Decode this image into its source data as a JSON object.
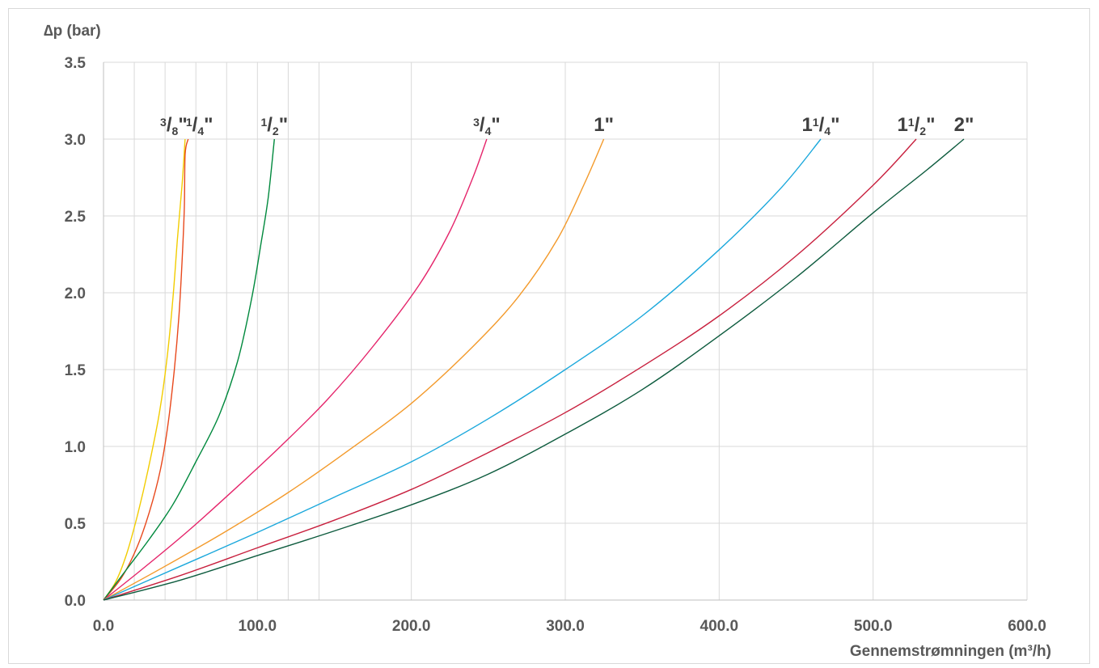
{
  "chart_data": {
    "type": "line",
    "title": "",
    "ylabel": "∆p (bar)",
    "xlabel": "Gennemstrømningen (m³/h)",
    "xlim": [
      0,
      600
    ],
    "ylim": [
      0,
      3.5
    ],
    "x_ticks": [
      0,
      100,
      200,
      300,
      400,
      500,
      600
    ],
    "x_tick_labels": [
      "0.0",
      "100.0",
      "200.0",
      "300.0",
      "400.0",
      "500.0",
      "600.0"
    ],
    "y_ticks": [
      0,
      0.5,
      1.0,
      1.5,
      2.0,
      2.5,
      3.0,
      3.5
    ],
    "y_tick_labels": [
      "0.0",
      "0.5",
      "1.0",
      "1.5",
      "2.0",
      "2.5",
      "3.0",
      "3.5"
    ],
    "vertical_gridlines": [
      20,
      40,
      60,
      80,
      100,
      120,
      140,
      200,
      300,
      400,
      500,
      600
    ],
    "grid": true,
    "series": [
      {
        "label": {
          "whole": "",
          "num": "3",
          "den": "8",
          "suffix": "\""
        },
        "color": "#f2cc00",
        "points": [
          [
            0,
            0
          ],
          [
            8,
            0.12
          ],
          [
            15,
            0.3
          ],
          [
            22,
            0.55
          ],
          [
            29,
            0.85
          ],
          [
            36,
            1.2
          ],
          [
            41,
            1.55
          ],
          [
            45,
            1.95
          ],
          [
            48,
            2.35
          ],
          [
            51,
            2.7
          ],
          [
            53,
            3.0
          ]
        ]
      },
      {
        "label": {
          "whole": "",
          "num": "1",
          "den": "4",
          "suffix": "\""
        },
        "color": "#e8491d",
        "points": [
          [
            0,
            0
          ],
          [
            12,
            0.15
          ],
          [
            22,
            0.35
          ],
          [
            30,
            0.58
          ],
          [
            37,
            0.85
          ],
          [
            42,
            1.15
          ],
          [
            46,
            1.5
          ],
          [
            49,
            1.85
          ],
          [
            51,
            2.2
          ],
          [
            52.5,
            2.55
          ],
          [
            53,
            2.9
          ],
          [
            55,
            3.0
          ]
        ]
      },
      {
        "label": {
          "whole": "",
          "num": "1",
          "den": "2",
          "suffix": "\""
        },
        "color": "#00893d",
        "points": [
          [
            0,
            0
          ],
          [
            15,
            0.2
          ],
          [
            30,
            0.4
          ],
          [
            45,
            0.62
          ],
          [
            60,
            0.9
          ],
          [
            75,
            1.2
          ],
          [
            87,
            1.55
          ],
          [
            96,
            1.95
          ],
          [
            102,
            2.3
          ],
          [
            107,
            2.62
          ],
          [
            111,
            3.0
          ]
        ]
      },
      {
        "label": {
          "whole": "",
          "num": "3",
          "den": "4",
          "suffix": "\""
        },
        "color": "#e5256b",
        "points": [
          [
            0,
            0
          ],
          [
            25,
            0.2
          ],
          [
            55,
            0.45
          ],
          [
            85,
            0.72
          ],
          [
            115,
            1.0
          ],
          [
            145,
            1.3
          ],
          [
            175,
            1.65
          ],
          [
            205,
            2.05
          ],
          [
            225,
            2.4
          ],
          [
            240,
            2.75
          ],
          [
            249,
            3.0
          ]
        ]
      },
      {
        "label": {
          "whole": "1",
          "num": "",
          "den": "",
          "suffix": "\""
        },
        "color": "#f39a2b",
        "points": [
          [
            0,
            0
          ],
          [
            40,
            0.22
          ],
          [
            80,
            0.45
          ],
          [
            120,
            0.7
          ],
          [
            160,
            0.98
          ],
          [
            200,
            1.28
          ],
          [
            240,
            1.65
          ],
          [
            270,
            1.98
          ],
          [
            295,
            2.35
          ],
          [
            312,
            2.7
          ],
          [
            325,
            3.0
          ]
        ]
      },
      {
        "label": {
          "whole": "1",
          "num": "1",
          "den": "4",
          "suffix": "\""
        },
        "color": "#1ba8dc",
        "points": [
          [
            0,
            0
          ],
          [
            50,
            0.22
          ],
          [
            100,
            0.44
          ],
          [
            150,
            0.67
          ],
          [
            200,
            0.9
          ],
          [
            250,
            1.18
          ],
          [
            300,
            1.5
          ],
          [
            350,
            1.85
          ],
          [
            400,
            2.28
          ],
          [
            440,
            2.68
          ],
          [
            466,
            3.0
          ]
        ]
      },
      {
        "label": {
          "whole": "1",
          "num": "1",
          "den": "2",
          "suffix": "\""
        },
        "color": "#c8203e",
        "points": [
          [
            0,
            0
          ],
          [
            50,
            0.16
          ],
          [
            100,
            0.34
          ],
          [
            150,
            0.52
          ],
          [
            200,
            0.72
          ],
          [
            250,
            0.96
          ],
          [
            300,
            1.22
          ],
          [
            350,
            1.52
          ],
          [
            400,
            1.85
          ],
          [
            450,
            2.24
          ],
          [
            500,
            2.7
          ],
          [
            528,
            3.0
          ]
        ]
      },
      {
        "label": {
          "whole": "2",
          "num": "",
          "den": "",
          "suffix": "\""
        },
        "color": "#0d5b3e",
        "points": [
          [
            0,
            0
          ],
          [
            50,
            0.13
          ],
          [
            100,
            0.29
          ],
          [
            150,
            0.45
          ],
          [
            200,
            0.62
          ],
          [
            250,
            0.82
          ],
          [
            300,
            1.08
          ],
          [
            350,
            1.37
          ],
          [
            400,
            1.72
          ],
          [
            450,
            2.1
          ],
          [
            500,
            2.52
          ],
          [
            535,
            2.8
          ],
          [
            559,
            3.0
          ]
        ]
      }
    ]
  }
}
